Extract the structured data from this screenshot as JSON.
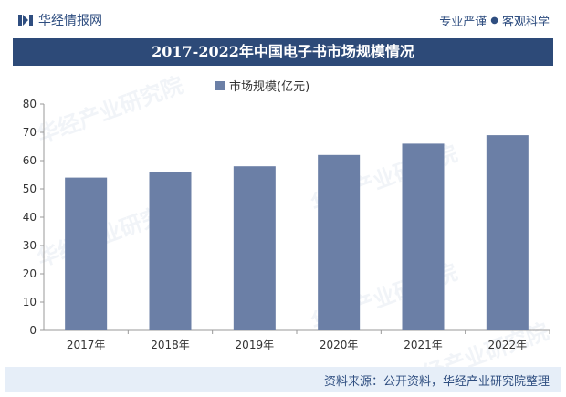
{
  "header": {
    "brand": "华经情报网",
    "slogan_left": "专业严谨",
    "slogan_sep": "●",
    "slogan_right": "客观科学"
  },
  "title": "2017-2022年中国电子书市场规模情况",
  "legend": {
    "label": "市场规模(亿元)"
  },
  "footer": {
    "source": "资料来源：公开资料，华经产业研究院整理"
  },
  "watermark": "华经产业研究院",
  "colors": {
    "bar": "#6b7fa6",
    "titlebar": "#2d4a78",
    "footer_bg": "#e6eef8",
    "brand": "#2f4e80"
  },
  "chart_data": {
    "type": "bar",
    "categories": [
      "2017年",
      "2018年",
      "2019年",
      "2020年",
      "2021年",
      "2022年"
    ],
    "series": [
      {
        "name": "市场规模(亿元)",
        "values": [
          54,
          56,
          58,
          62,
          66,
          69
        ]
      }
    ],
    "ylim": [
      0,
      80
    ],
    "yticks": [
      0,
      10,
      20,
      30,
      40,
      50,
      60,
      70,
      80
    ],
    "grid": false,
    "legend_position": "top-center"
  }
}
